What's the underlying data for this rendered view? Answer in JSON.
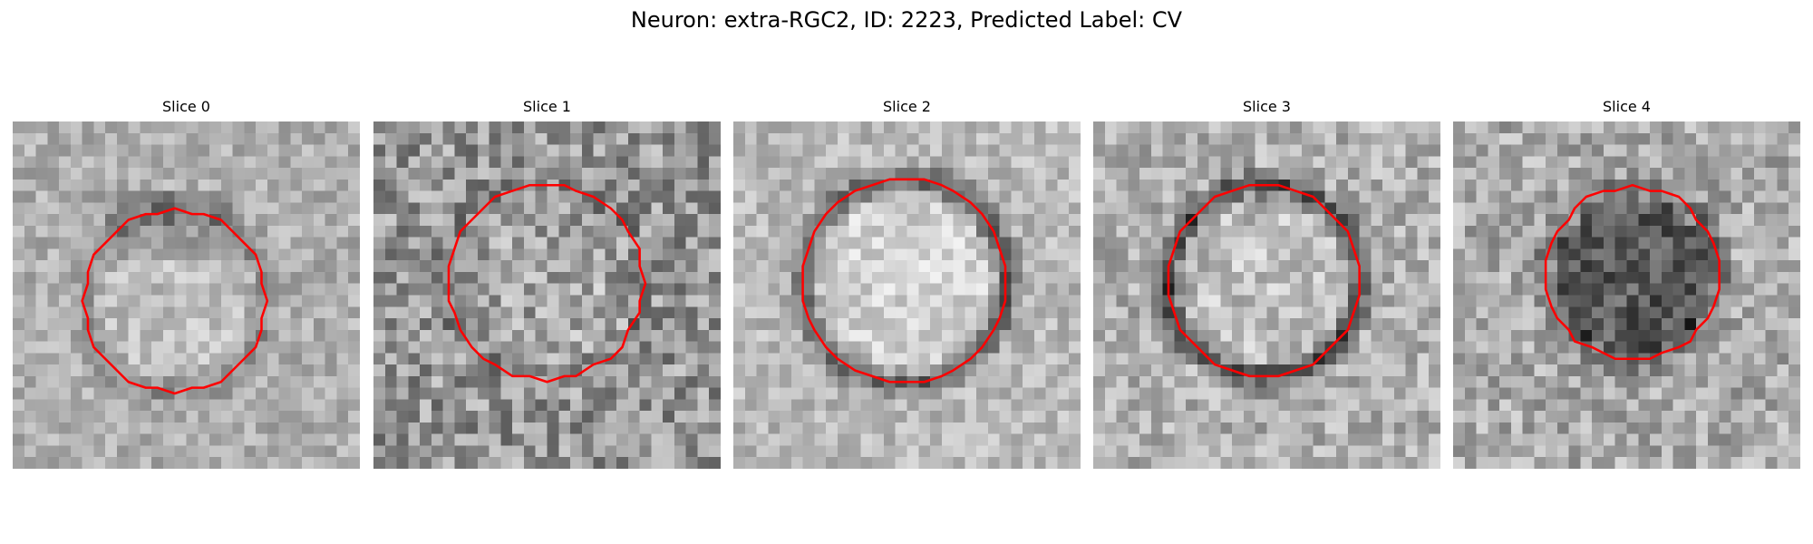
{
  "figure": {
    "title": "Neuron: extra-RGC2, ID: 2223, Predicted Label: CV"
  },
  "panels": [
    {
      "title": "Slice 0",
      "content": "grayscale-noise-patch",
      "contour": "red-outline",
      "shading": "light-center"
    },
    {
      "title": "Slice 1",
      "content": "grayscale-noise-patch",
      "contour": "red-outline",
      "shading": "noisy"
    },
    {
      "title": "Slice 2",
      "content": "grayscale-noise-patch",
      "contour": "red-outline",
      "shading": "light-center-dark-ring"
    },
    {
      "title": "Slice 3",
      "content": "grayscale-noise-patch",
      "contour": "red-outline",
      "shading": "light-center-dark-ring"
    },
    {
      "title": "Slice 4",
      "content": "grayscale-noise-patch",
      "contour": "red-outline",
      "shading": "dark-center"
    }
  ],
  "colors": {
    "contour": "#ff0000",
    "background": "#ffffff"
  }
}
